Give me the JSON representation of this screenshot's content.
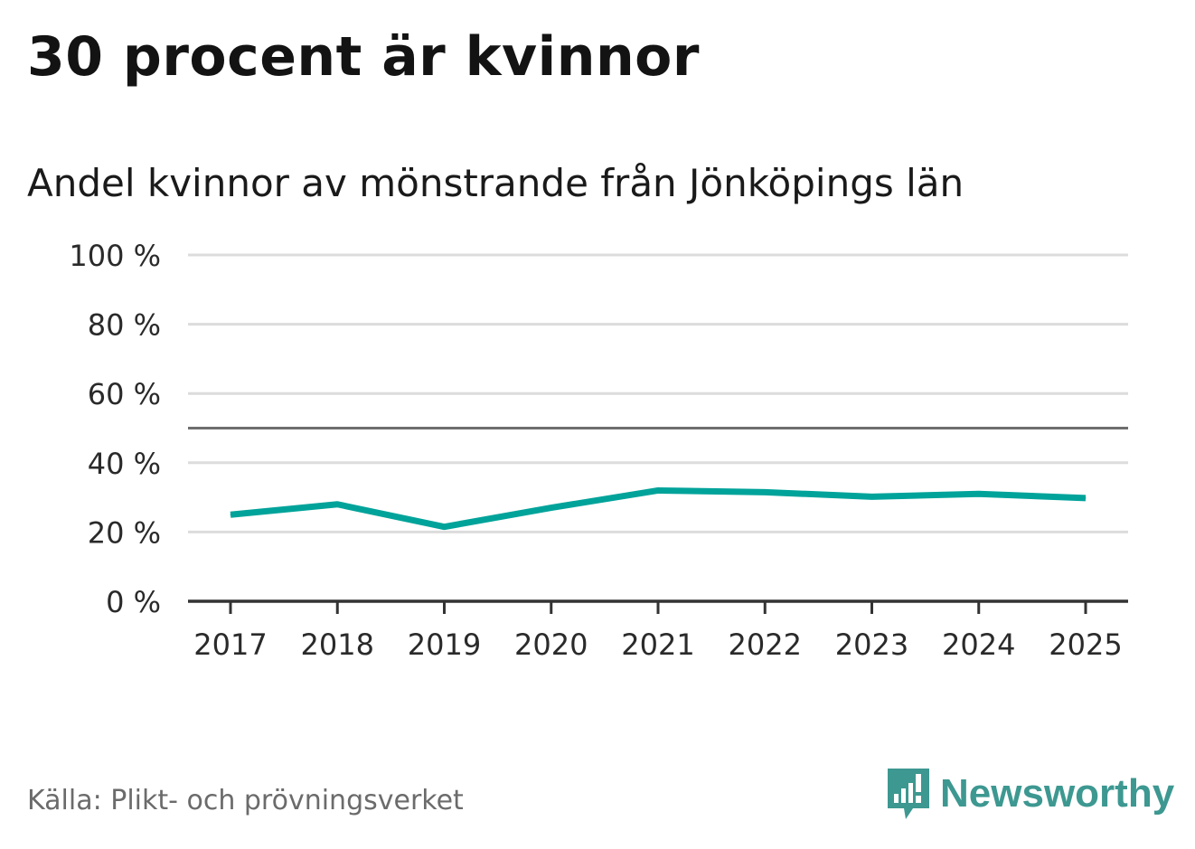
{
  "header": {
    "title": "30 procent är kvinnor",
    "subtitle": "Andel kvinnor av mönstrande från Jönköpings län"
  },
  "footer": {
    "source": "Källa: Plikt- och prövningsverket",
    "brand": "Newsworthy"
  },
  "colors": {
    "line": "#00a39a",
    "grid": "#dcdcdc",
    "reference_line": "#6e6e6e",
    "axis": "#333333",
    "brand": "#3d9891"
  },
  "icons": {
    "brand_logo": "newsworthy-logo-icon"
  },
  "chart_data": {
    "type": "line",
    "x": [
      "2017",
      "2018",
      "2019",
      "2020",
      "2021",
      "2022",
      "2023",
      "2024",
      "2025"
    ],
    "series": [
      {
        "values": [
          25,
          28,
          21.5,
          27,
          32,
          31.5,
          30.2,
          31,
          29.8
        ]
      }
    ],
    "ylim": [
      0,
      100
    ],
    "yticks": [
      0,
      20,
      40,
      60,
      80,
      100
    ],
    "ytick_labels": [
      "0 %",
      "20 %",
      "40 %",
      "60 %",
      "80 %",
      "100 %"
    ],
    "reference_line": 50,
    "grid": true,
    "xlabel": "",
    "ylabel": ""
  }
}
